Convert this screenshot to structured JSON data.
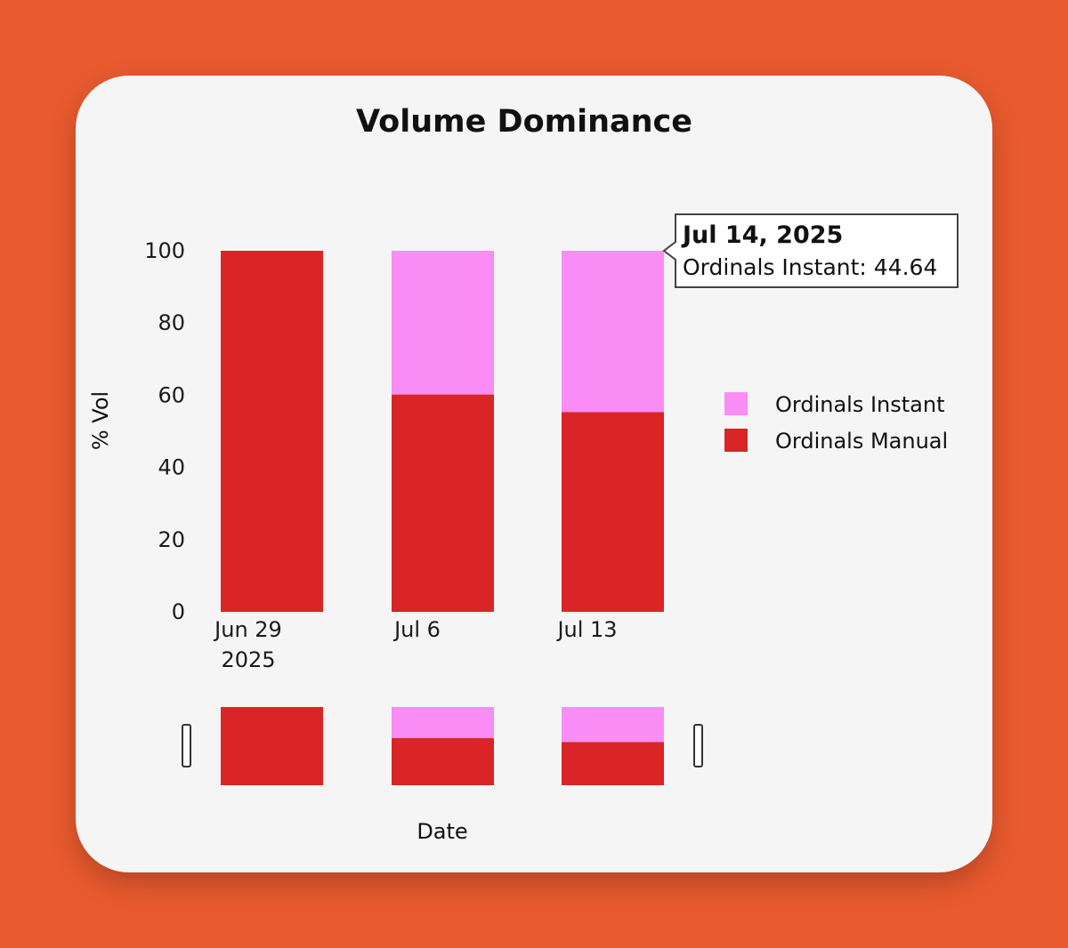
{
  "chart_data": {
    "type": "bar",
    "stacked": true,
    "title": "Volume Dominance",
    "xlabel": "Date",
    "ylabel": "% Vol",
    "ylim": [
      0,
      100
    ],
    "yticks": [
      0,
      20,
      40,
      60,
      80,
      100
    ],
    "categories": [
      "Jun 29 2025",
      "Jul 6",
      "Jul 13"
    ],
    "category_labels": [
      [
        "Jun 29",
        "2025"
      ],
      [
        "Jul 6"
      ],
      [
        "Jul 13"
      ]
    ],
    "series": [
      {
        "name": "Ordinals Manual",
        "color": "#d92525",
        "values": [
          100,
          60.2,
          55.36
        ]
      },
      {
        "name": "Ordinals Instant",
        "color": "#f98cf5",
        "values": [
          0,
          39.8,
          44.64
        ]
      }
    ],
    "legend": {
      "placement": "right",
      "order": [
        "Ordinals Instant",
        "Ordinals Manual"
      ]
    },
    "grid": false,
    "navigator": true,
    "tooltip": {
      "category_index": 2,
      "title": "Jul 14, 2025",
      "text": "Ordinals Instant: 44.64"
    }
  }
}
